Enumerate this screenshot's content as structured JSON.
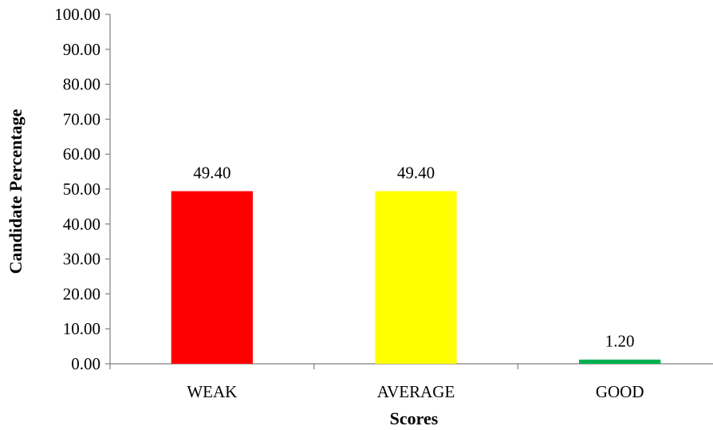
{
  "chart_data": {
    "type": "bar",
    "title": "",
    "xlabel": "Scores",
    "ylabel": "Candidate Percentage",
    "categories": [
      "WEAK",
      "AVERAGE",
      "GOOD"
    ],
    "values": [
      49.4,
      49.4,
      1.2
    ],
    "data_labels": [
      "49.40",
      "49.40",
      "1.20"
    ],
    "bar_colors": [
      "#ff0000",
      "#ffff00",
      "#00b050"
    ],
    "ylim": [
      0,
      100
    ],
    "yticks": [
      "0.00",
      "10.00",
      "20.00",
      "30.00",
      "40.00",
      "50.00",
      "60.00",
      "70.00",
      "80.00",
      "90.00",
      "100.00"
    ],
    "grid": false,
    "legend": "none"
  }
}
